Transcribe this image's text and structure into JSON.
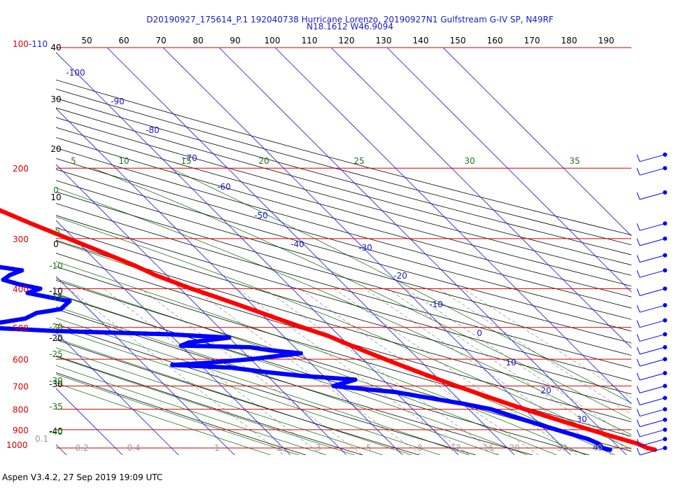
{
  "header": {
    "title_line1": "D20190927_175614_P.1 192040738 Hurricane Lorenzo, 20190927N1 Gulfstream G-IV SP, N49RF",
    "title_line2": "N18.1612 W46.9094"
  },
  "footer": {
    "text": "Aspen V3.4.2, 27 Sep 2019  19:09 UTC"
  },
  "colors": {
    "isobar": "#d40000",
    "isotherm": "#1a1ac8",
    "dry_adiabat": "#000000",
    "moist_adiabat": "#1a7a1a",
    "mixing_ratio": "#999999",
    "temperature": "#ff0000",
    "dewpoint": "#0000ff",
    "wind": "#0000ff",
    "pressure_label": "#d40000"
  },
  "chart_data": {
    "type": "skew-t",
    "pressure_labels": [
      "100-110",
      "200",
      "300",
      "400",
      "500",
      "600",
      "700",
      "800",
      "900",
      "1000"
    ],
    "top_scale_labels": [
      "50",
      "60",
      "70",
      "80",
      "90",
      "100",
      "110",
      "120",
      "130",
      "140",
      "150",
      "160",
      "170",
      "180",
      "190"
    ],
    "left_black_labels": [
      "40",
      "30",
      "20",
      "10",
      "0",
      "-10",
      "-20",
      "-30",
      "-40"
    ],
    "left_green_labels": [
      "0",
      "-5",
      "-10",
      "-15",
      "-20",
      "-25",
      "-30",
      "-35",
      "-40"
    ],
    "isotherm_labels": [
      "-100",
      "-90",
      "-80",
      "-70",
      "-60",
      "-50",
      "-40",
      "-30",
      "-20",
      "-10",
      "0",
      "10",
      "20",
      "30",
      "40"
    ],
    "moist_top_labels": [
      "5",
      "10",
      "15",
      "20",
      "25",
      "30",
      "35"
    ],
    "mixing_ratio_labels": [
      "0.2",
      "0.4",
      "1",
      "2",
      "3",
      "5",
      "8",
      "12",
      "16",
      "20",
      "30",
      "40"
    ],
    "corner_label": "0.1",
    "temperature_profile": [
      [
        230,
        -53
      ],
      [
        235,
        -52
      ],
      [
        250,
        -49
      ],
      [
        275,
        -45
      ],
      [
        300,
        -41
      ],
      [
        320,
        -38
      ],
      [
        350,
        -34
      ],
      [
        370,
        -32
      ],
      [
        400,
        -28
      ],
      [
        420,
        -25
      ],
      [
        450,
        -21
      ],
      [
        475,
        -18
      ],
      [
        500,
        -15
      ],
      [
        525,
        -12
      ],
      [
        550,
        -10
      ],
      [
        575,
        -8
      ],
      [
        600,
        -6
      ],
      [
        625,
        -4
      ],
      [
        650,
        -2
      ],
      [
        675,
        0
      ],
      [
        700,
        2
      ],
      [
        725,
        4
      ],
      [
        750,
        6
      ],
      [
        775,
        8
      ],
      [
        800,
        10
      ],
      [
        825,
        12
      ],
      [
        850,
        14
      ],
      [
        875,
        16
      ],
      [
        900,
        18
      ],
      [
        925,
        20
      ],
      [
        950,
        22
      ],
      [
        975,
        24
      ],
      [
        1000,
        25
      ],
      [
        1010,
        26
      ]
    ],
    "dewpoint_profile": [
      [
        205,
        -78
      ],
      [
        210,
        -72
      ],
      [
        215,
        -68
      ],
      [
        230,
        -60
      ],
      [
        250,
        -55
      ],
      [
        265,
        -52
      ],
      [
        280,
        -52
      ],
      [
        290,
        -55
      ],
      [
        300,
        -60
      ],
      [
        305,
        -70
      ],
      [
        310,
        -90
      ],
      [
        315,
        -85
      ],
      [
        330,
        -88
      ],
      [
        345,
        -85
      ],
      [
        350,
        -60
      ],
      [
        360,
        -55
      ],
      [
        370,
        -58
      ],
      [
        380,
        -60
      ],
      [
        390,
        -58
      ],
      [
        400,
        -55
      ],
      [
        410,
        -58
      ],
      [
        430,
        -52
      ],
      [
        450,
        -55
      ],
      [
        460,
        -60
      ],
      [
        475,
        -63
      ],
      [
        490,
        -70
      ],
      [
        500,
        -72
      ],
      [
        510,
        -60
      ],
      [
        520,
        -40
      ],
      [
        530,
        -30
      ],
      [
        545,
        -38
      ],
      [
        555,
        -40
      ],
      [
        560,
        -28
      ],
      [
        570,
        -25
      ],
      [
        580,
        -20
      ],
      [
        600,
        -30
      ],
      [
        615,
        -40
      ],
      [
        620,
        -45
      ],
      [
        630,
        -35
      ],
      [
        645,
        -30
      ],
      [
        660,
        -24
      ],
      [
        675,
        -15
      ],
      [
        690,
        -18
      ],
      [
        700,
        -20
      ],
      [
        710,
        -16
      ],
      [
        725,
        -10
      ],
      [
        750,
        -5
      ],
      [
        775,
        0
      ],
      [
        800,
        4
      ],
      [
        825,
        6
      ],
      [
        850,
        8
      ],
      [
        875,
        10
      ],
      [
        900,
        12
      ],
      [
        925,
        14
      ],
      [
        950,
        16
      ],
      [
        975,
        17
      ],
      [
        1000,
        17
      ],
      [
        1010,
        18
      ]
    ],
    "wind_levels": [
      185,
      200,
      230,
      275,
      300,
      330,
      360,
      400,
      440,
      480,
      520,
      560,
      600,
      650,
      700,
      750,
      800,
      850,
      900,
      950,
      1000
    ]
  }
}
